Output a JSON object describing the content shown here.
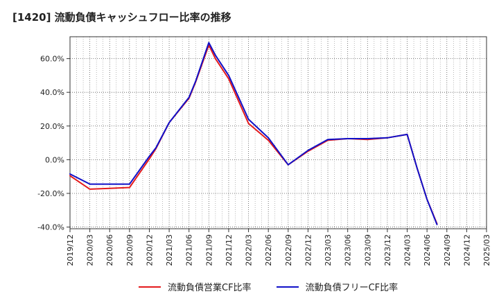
{
  "chart_data": {
    "type": "line",
    "title": "[1420]  流動負債キャッシュフロー比率の推移",
    "xlabel": "",
    "ylabel": "",
    "ylim": [
      -41,
      73
    ],
    "yticks": [
      -40,
      -20,
      0,
      20,
      40,
      60
    ],
    "ytick_labels": [
      "-40.0%",
      "-20.0%",
      "0.0%",
      "20.0%",
      "40.0%",
      "60.0%"
    ],
    "categories": [
      "2019/12",
      "2020/03",
      "2020/06",
      "2020/09",
      "2020/12",
      "2021/03",
      "2021/06",
      "2021/09",
      "2021/12",
      "2022/03",
      "2022/06",
      "2022/09",
      "2022/12",
      "2023/03",
      "2023/06",
      "2023/09",
      "2023/12",
      "2024/03",
      "2024/06",
      "2024/09",
      "2024/12",
      "2025/03"
    ],
    "grid": true,
    "legend_position": "bottom",
    "series": [
      {
        "name": "流動負債営業CF比率",
        "color": "#e41a1c",
        "points": [
          [
            0,
            -9.5
          ],
          [
            1,
            -17.5
          ],
          [
            2,
            -17
          ],
          [
            3,
            -16.5
          ],
          [
            4,
            0.5
          ],
          [
            4.33,
            6.5
          ],
          [
            5,
            22
          ],
          [
            6,
            36.5
          ],
          [
            6.33,
            46
          ],
          [
            7,
            68
          ],
          [
            7.33,
            60
          ],
          [
            8,
            48
          ],
          [
            9,
            21.5
          ],
          [
            10,
            11.5
          ],
          [
            11,
            -3
          ],
          [
            12,
            5
          ],
          [
            13,
            11.5
          ],
          [
            14,
            12.5
          ],
          [
            15,
            12
          ],
          [
            16,
            13
          ],
          [
            17,
            15
          ],
          [
            17.5,
            -5
          ],
          [
            18,
            -23.5
          ],
          [
            18.5,
            -38
          ]
        ]
      },
      {
        "name": "流動負債フリーCF比率",
        "color": "#1010c8",
        "points": [
          [
            0,
            -8.5
          ],
          [
            1,
            -14.5
          ],
          [
            2,
            -14.5
          ],
          [
            3,
            -14.5
          ],
          [
            4,
            2
          ],
          [
            4.33,
            7
          ],
          [
            5,
            22
          ],
          [
            6,
            37
          ],
          [
            6.33,
            46.5
          ],
          [
            7,
            69.5
          ],
          [
            7.33,
            62
          ],
          [
            8,
            50
          ],
          [
            9,
            24
          ],
          [
            10,
            13
          ],
          [
            11,
            -3
          ],
          [
            12,
            5.5
          ],
          [
            13,
            12
          ],
          [
            14,
            12.5
          ],
          [
            15,
            12.5
          ],
          [
            16,
            13
          ],
          [
            17,
            15
          ],
          [
            17.5,
            -5
          ],
          [
            18,
            -23.5
          ],
          [
            18.5,
            -38.5
          ]
        ]
      }
    ]
  }
}
